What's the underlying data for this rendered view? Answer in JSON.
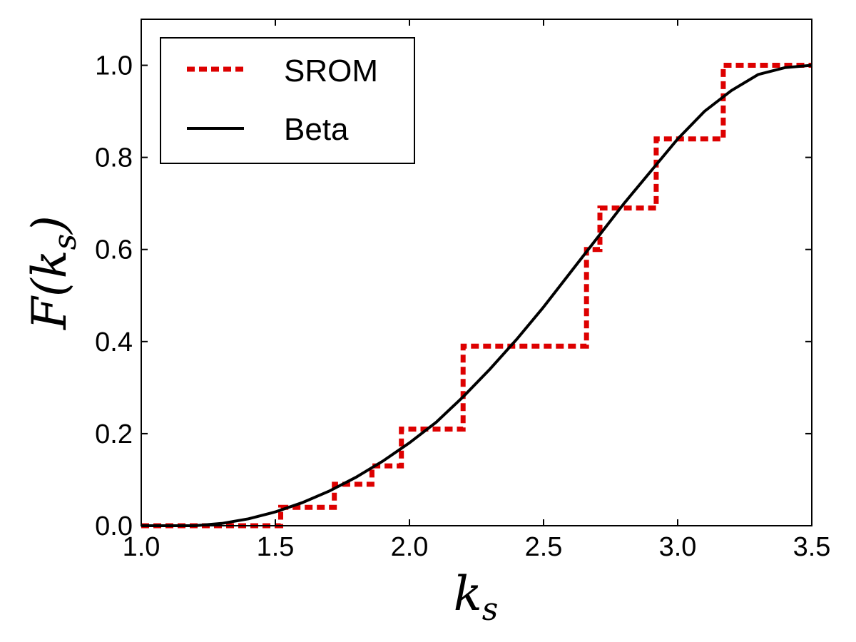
{
  "chart_data": {
    "type": "line",
    "xlabel_main": "k",
    "xlabel_sub": "s",
    "ylabel_prefix": "F(",
    "ylabel_main": "k",
    "ylabel_sub": "s",
    "ylabel_suffix": ")",
    "xlim": [
      1.0,
      3.5
    ],
    "ylim": [
      0.0,
      1.1
    ],
    "xticks": [
      "1.0",
      "1.5",
      "2.0",
      "2.5",
      "3.0",
      "3.5"
    ],
    "yticks": [
      "0.0",
      "0.2",
      "0.4",
      "0.6",
      "0.8",
      "1.0"
    ],
    "legend_position": "top-left",
    "series": [
      {
        "name": "SROM",
        "style": "dashed-step",
        "color": "#dd0000",
        "x": [
          1.0,
          1.52,
          1.52,
          1.72,
          1.72,
          1.86,
          1.86,
          1.97,
          1.97,
          2.2,
          2.2,
          2.66,
          2.66,
          2.71,
          2.71,
          2.92,
          2.92,
          3.17,
          3.17,
          3.5
        ],
        "y": [
          0.0,
          0.0,
          0.04,
          0.04,
          0.09,
          0.09,
          0.13,
          0.13,
          0.21,
          0.21,
          0.39,
          0.39,
          0.6,
          0.6,
          0.69,
          0.69,
          0.84,
          0.84,
          1.0,
          1.0
        ]
      },
      {
        "name": "Beta",
        "style": "solid",
        "color": "#000000",
        "x": [
          1.0,
          1.2,
          1.3,
          1.4,
          1.5,
          1.6,
          1.7,
          1.8,
          1.9,
          2.0,
          2.1,
          2.2,
          2.3,
          2.4,
          2.5,
          2.6,
          2.7,
          2.8,
          2.9,
          3.0,
          3.1,
          3.2,
          3.3,
          3.4,
          3.5
        ],
        "y": [
          0.0,
          0.0,
          0.005,
          0.015,
          0.03,
          0.05,
          0.075,
          0.105,
          0.14,
          0.18,
          0.225,
          0.28,
          0.34,
          0.405,
          0.475,
          0.55,
          0.625,
          0.7,
          0.77,
          0.84,
          0.9,
          0.945,
          0.98,
          0.995,
          1.0
        ]
      }
    ]
  }
}
